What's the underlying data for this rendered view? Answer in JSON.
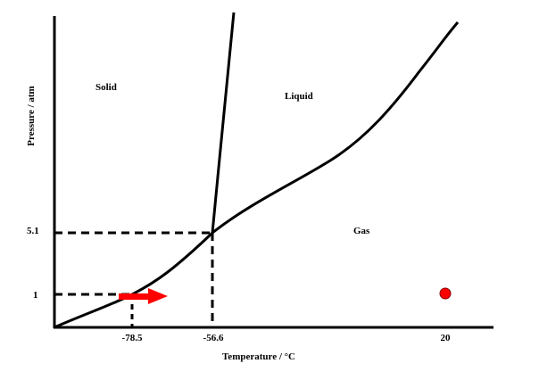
{
  "axes": {
    "xlabel": "Temperature / °C",
    "ylabel": "Pressure / atm",
    "x_ticks": [
      "-78.5",
      "-56.6",
      "20"
    ],
    "y_ticks": [
      "5.1",
      "1"
    ]
  },
  "regions": {
    "solid": "Solid",
    "liquid": "Liquid",
    "gas": "Gas"
  },
  "colors": {
    "curve": "#000000",
    "marker": "#ff0000"
  }
}
